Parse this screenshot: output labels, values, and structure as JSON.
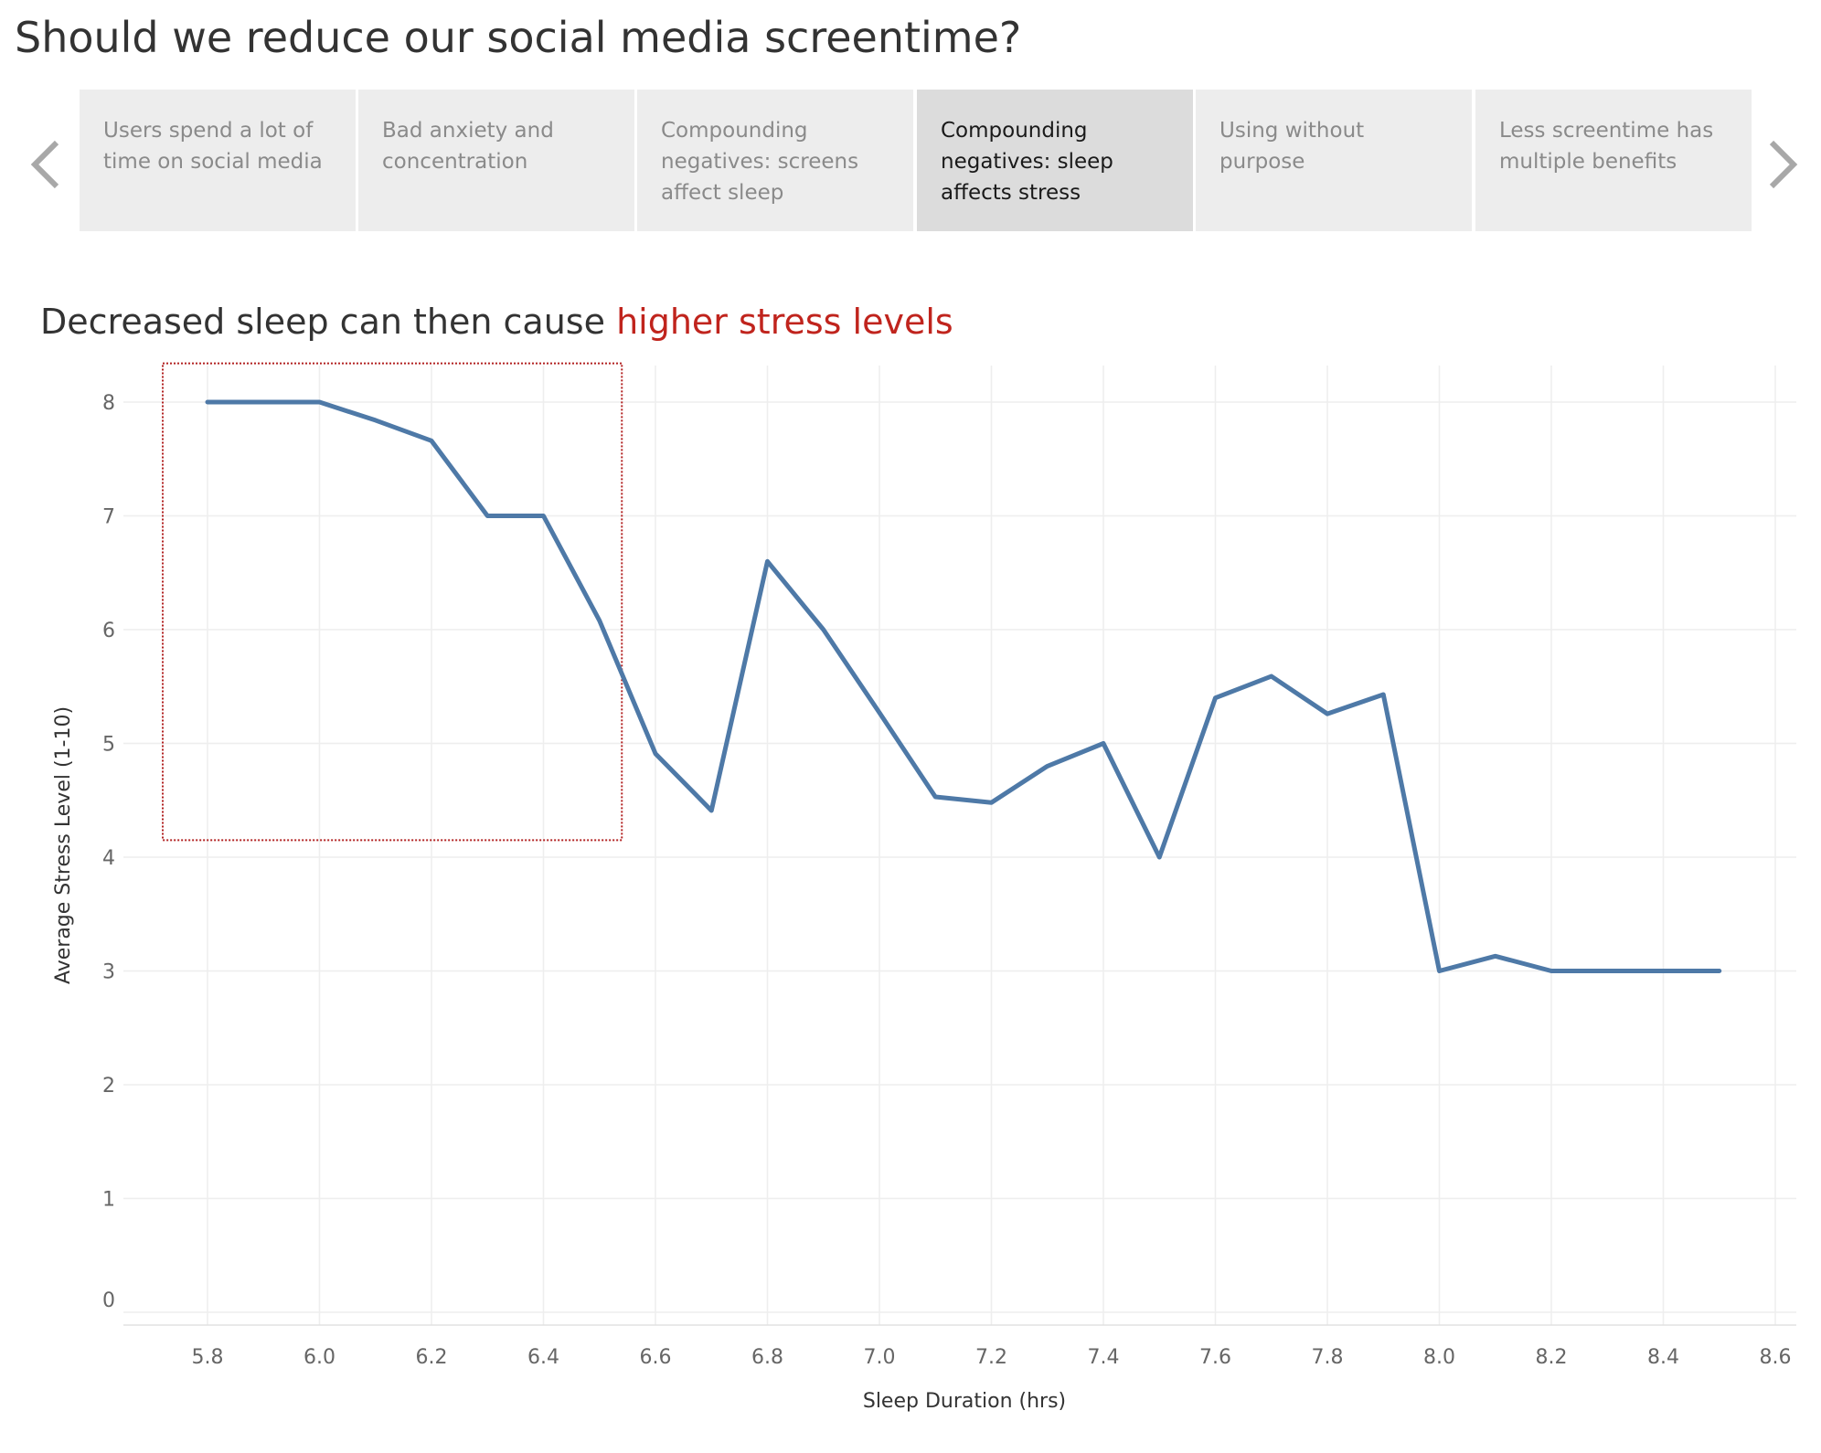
{
  "page": {
    "title": "Should we reduce our social media screentime?"
  },
  "nav": {
    "prev_icon": "chevron-left-icon",
    "next_icon": "chevron-right-icon"
  },
  "tabs": [
    {
      "label": "Users spend a lot of time on social media",
      "active": false
    },
    {
      "label": "Bad anxiety and concentration",
      "active": false
    },
    {
      "label": "Compounding negatives: screens affect sleep",
      "active": false
    },
    {
      "label": "Compounding negatives: sleep affects stress",
      "active": true
    },
    {
      "label": "Using without purpose",
      "active": false
    },
    {
      "label": "Less screentime has multiple benefits",
      "active": false
    }
  ],
  "subtitle": {
    "prefix": "Decreased sleep can then cause ",
    "highlight": "higher stress levels"
  },
  "colors": {
    "line": "#4e79a7",
    "highlight": "#c0241d",
    "highlight_box": "#b22222"
  },
  "chart_data": {
    "type": "line",
    "xlabel": "Sleep Duration (hrs)",
    "ylabel": "Average Stress Level (1-10)",
    "xlim": [
      5.7,
      8.65
    ],
    "ylim": [
      0,
      8.3
    ],
    "x_ticks": [
      5.8,
      6.0,
      6.2,
      6.4,
      6.6,
      6.8,
      7.0,
      7.2,
      7.4,
      7.6,
      7.8,
      8.0,
      8.2,
      8.4,
      8.6
    ],
    "x_tick_labels": [
      "5.8",
      "6.0",
      "6.2",
      "6.4",
      "6.6",
      "6.8",
      "7.0",
      "7.2",
      "7.4",
      "7.6",
      "7.8",
      "8.0",
      "8.2",
      "8.4",
      "8.6"
    ],
    "y_ticks": [
      0,
      1,
      2,
      3,
      4,
      5,
      6,
      7,
      8
    ],
    "y_tick_labels": [
      "0",
      "1",
      "2",
      "3",
      "4",
      "5",
      "6",
      "7",
      "8"
    ],
    "grid": true,
    "x": [
      5.8,
      5.9,
      6.0,
      6.1,
      6.2,
      6.3,
      6.4,
      6.5,
      6.6,
      6.7,
      6.8,
      6.9,
      7.0,
      7.1,
      7.2,
      7.3,
      7.4,
      7.5,
      7.6,
      7.7,
      7.8,
      7.9,
      8.0,
      8.1,
      8.2,
      8.3,
      8.4,
      8.5
    ],
    "y": [
      8.0,
      8.0,
      8.0,
      7.84,
      7.66,
      7.0,
      7.0,
      6.08,
      4.91,
      4.41,
      6.6,
      6.0,
      5.27,
      4.53,
      4.48,
      4.8,
      5.0,
      4.0,
      5.4,
      5.59,
      5.26,
      5.43,
      3.0,
      3.13,
      3.0,
      3.0,
      3.0,
      3.0
    ],
    "highlight_region": {
      "x": [
        5.72,
        6.54
      ],
      "y": [
        4.15,
        8.34
      ]
    }
  }
}
